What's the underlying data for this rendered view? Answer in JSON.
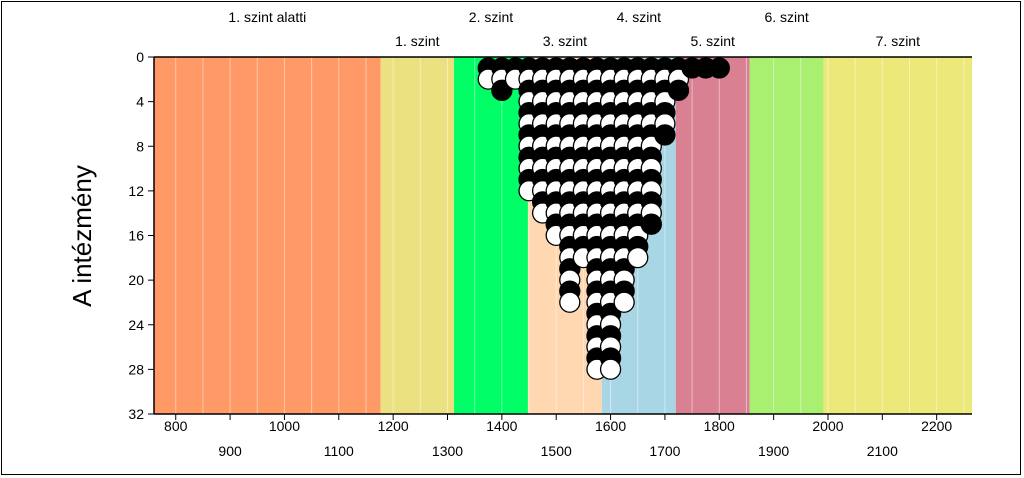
{
  "chart_data": {
    "type": "scatter",
    "title": "",
    "xlabel": "",
    "ylabel": "A intézmény",
    "xlim": [
      760,
      2265
    ],
    "ylim": [
      0,
      32
    ],
    "y_inverted": true,
    "grid": "vertical every 50",
    "x_ticks": [
      800,
      900,
      1000,
      1100,
      1200,
      1300,
      1400,
      1500,
      1600,
      1700,
      1800,
      1900,
      2000,
      2100,
      2200
    ],
    "y_ticks": [
      0,
      4,
      8,
      12,
      16,
      20,
      24,
      28,
      32
    ],
    "levels": [
      {
        "label": "1. szint alatti",
        "x_from": 760,
        "x_to": 1177,
        "color": "#ff9966",
        "label_row": "top"
      },
      {
        "label": "1. szint",
        "x_from": 1177,
        "x_to": 1312,
        "color": "#ece180",
        "label_row": "bottom"
      },
      {
        "label": "2. szint",
        "x_from": 1312,
        "x_to": 1448,
        "color": "#00ff66",
        "label_row": "top"
      },
      {
        "label": "3. szint",
        "x_from": 1448,
        "x_to": 1584,
        "color": "#ffd7b0",
        "label_row": "bottom"
      },
      {
        "label": "4. szint",
        "x_from": 1584,
        "x_to": 1720,
        "color": "#a9d6e5",
        "label_row": "top"
      },
      {
        "label": "5. szint",
        "x_from": 1720,
        "x_to": 1856,
        "color": "#d98093",
        "label_row": "bottom"
      },
      {
        "label": "6. szint",
        "x_from": 1856,
        "x_to": 1992,
        "color": "#a9ef70",
        "label_row": "top"
      },
      {
        "label": "7. szint",
        "x_from": 1992,
        "x_to": 2265,
        "color": "#ece97a",
        "label_row": "bottom"
      }
    ],
    "columns": [
      {
        "x": 1375,
        "count": 2,
        "last": "white"
      },
      {
        "x": 1400,
        "count": 3,
        "last": "black"
      },
      {
        "x": 1425,
        "count": 2,
        "last": "white"
      },
      {
        "x": 1450,
        "count": 12,
        "last": "white"
      },
      {
        "x": 1475,
        "count": 14,
        "last": "white"
      },
      {
        "x": 1500,
        "count": 16,
        "last": "white"
      },
      {
        "x": 1525,
        "count": 22,
        "last": "white"
      },
      {
        "x": 1550,
        "count": 18,
        "last": "white"
      },
      {
        "x": 1575,
        "count": 28,
        "last": "white"
      },
      {
        "x": 1600,
        "count": 28,
        "last": "white"
      },
      {
        "x": 1625,
        "count": 22,
        "last": "white"
      },
      {
        "x": 1650,
        "count": 18,
        "last": "white"
      },
      {
        "x": 1675,
        "count": 15,
        "last": "black"
      },
      {
        "x": 1700,
        "count": 7,
        "last": "black"
      },
      {
        "x": 1725,
        "count": 3,
        "last": "black"
      },
      {
        "x": 1750,
        "count": 1,
        "last": "black"
      },
      {
        "x": 1775,
        "count": 1,
        "last": "black"
      },
      {
        "x": 1800,
        "count": 1,
        "last": "black"
      }
    ]
  }
}
